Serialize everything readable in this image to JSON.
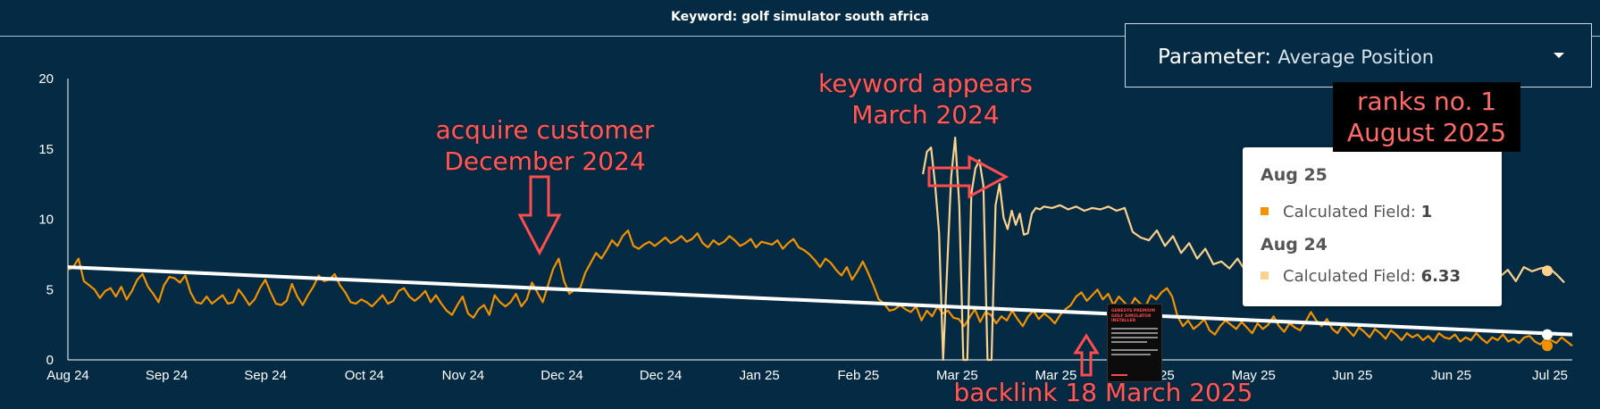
{
  "chart_data": {
    "type": "line",
    "title": "Keyword: golf simulator south africa",
    "xlabel": "",
    "ylabel": "",
    "ylim": [
      0,
      20
    ],
    "y_ticks": [
      0,
      5,
      10,
      15,
      20
    ],
    "x_tick_labels": [
      "Aug 24",
      "Sep 24",
      "Sep 24",
      "Oct 24",
      "Nov 24",
      "Dec 24",
      "Dec 24",
      "Jan 25",
      "Feb 25",
      "Mar 25",
      "Mar 25",
      "Apr 25",
      "May 25",
      "Jun 25",
      "Jun 25",
      "Jul 25"
    ],
    "x_range": [
      "2024-08-01",
      "2025-08-09"
    ],
    "grid": false,
    "series": [
      {
        "name": "Calculated Field",
        "period": "current",
        "color": "#f39200",
        "values": [
          6.4,
          6.6,
          7.2,
          5.6,
          5.3,
          5.0,
          4.4,
          4.9,
          5.1,
          4.5,
          5.2,
          4.3,
          4.9,
          5.7,
          6.1,
          5.2,
          4.7,
          4.1,
          5.3,
          5.9,
          5.8,
          5.5,
          6.0,
          4.8,
          4.1,
          4.0,
          4.5,
          4.0,
          4.3,
          4.6,
          4.0,
          4.1,
          5.0,
          4.5,
          3.9,
          4.3,
          5.1,
          5.7,
          4.8,
          4.0,
          3.9,
          4.2,
          5.4,
          4.5,
          3.9,
          4.6,
          5.2,
          6.0,
          5.6,
          5.7,
          6.1,
          5.3,
          4.8,
          4.1,
          4.0,
          4.3,
          4.1,
          3.8,
          4.2,
          4.6,
          4.0,
          4.2,
          4.9,
          5.1,
          4.5,
          4.2,
          4.5,
          4.9,
          4.1,
          4.6,
          4.0,
          3.5,
          3.2,
          3.9,
          4.5,
          3.3,
          3.0,
          3.6,
          3.9,
          3.2,
          4.6,
          4.1,
          3.8,
          4.1,
          4.7,
          3.8,
          4.3,
          5.5,
          4.8,
          4.1,
          5.3,
          6.5,
          7.2,
          5.6,
          4.7,
          5.0,
          5.1,
          6.2,
          6.9,
          7.6,
          7.2,
          7.8,
          8.5,
          8.1,
          8.8,
          9.2,
          8.1,
          7.9,
          8.2,
          8.4,
          8.1,
          8.4,
          8.7,
          8.3,
          8.5,
          8.8,
          8.4,
          8.6,
          9.0,
          8.3,
          8.0,
          8.5,
          8.2,
          8.4,
          8.8,
          8.5,
          8.1,
          8.3,
          8.6,
          8.0,
          8.4,
          8.3,
          8.2,
          8.5,
          7.9,
          8.3,
          8.6,
          8.0,
          7.8,
          7.5,
          7.1,
          6.6,
          7.2,
          6.9,
          6.4,
          6.0,
          6.6,
          5.7,
          6.3,
          7.0,
          6.2,
          5.3,
          4.3,
          4.0,
          3.5,
          3.6,
          3.9,
          3.6,
          3.4,
          3.8,
          2.8,
          3.5,
          3.1,
          3.8,
          3.3,
          3.5,
          3.0,
          2.9,
          2.4,
          3.0,
          3.6,
          2.7,
          3.4,
          3.2,
          2.6,
          3.1,
          2.8,
          3.5,
          2.9,
          2.4,
          3.1,
          3.5,
          2.9,
          3.3,
          3.0,
          2.6,
          3.2,
          3.6,
          3.9,
          4.5,
          4.8,
          4.2,
          4.6,
          5.0,
          4.3,
          4.7,
          3.9,
          4.5,
          4.1,
          3.7,
          4.4,
          4.0,
          3.8,
          4.6,
          4.3,
          4.8,
          5.1,
          4.5,
          3.1,
          2.4,
          2.8,
          2.2,
          2.5,
          2.9,
          2.1,
          1.8,
          2.4,
          2.8,
          2.5,
          2.2,
          2.7,
          2.3,
          1.9,
          2.6,
          2.2,
          2.5,
          3.1,
          2.4,
          2.0,
          2.6,
          2.3,
          2.1,
          2.7,
          3.4,
          2.8,
          2.4,
          2.9,
          2.2,
          1.9,
          2.5,
          2.1,
          1.7,
          2.3,
          2.0,
          1.6,
          2.2,
          1.9,
          1.5,
          2.1,
          1.8,
          1.4,
          1.9,
          1.6,
          1.8,
          1.4,
          1.7,
          1.3,
          1.9,
          1.6,
          1.5,
          1.8,
          1.3,
          1.6,
          1.4,
          1.9,
          1.5,
          1.2,
          1.6,
          1.4,
          1.8,
          1.3,
          1.5,
          1.2,
          1.6,
          1.7,
          1.3,
          1.1,
          1.5,
          1.4,
          1.2,
          1.6,
          1.3,
          1.0
        ]
      },
      {
        "name": "Calculated Field",
        "period": "previous",
        "color": "#fbd28d",
        "points": [
          [
            "2025-03-01",
            13.2
          ],
          [
            "2025-03-02",
            14.8
          ],
          [
            "2025-03-03",
            15.1
          ],
          [
            "2025-03-04",
            12.5
          ],
          [
            "2025-03-05",
            9.0
          ],
          [
            "2025-03-06",
            0
          ],
          [
            "2025-03-08",
            13.0
          ],
          [
            "2025-03-09",
            15.8
          ],
          [
            "2025-03-10",
            11.0
          ],
          [
            "2025-03-11",
            0
          ],
          [
            "2025-03-12",
            0
          ],
          [
            "2025-03-13",
            11.8
          ],
          [
            "2025-03-14",
            13.6
          ],
          [
            "2025-03-15",
            14.2
          ],
          [
            "2025-03-16",
            12.4
          ],
          [
            "2025-03-17",
            0
          ],
          [
            "2025-03-18",
            0
          ],
          [
            "2025-03-19",
            11.0
          ],
          [
            "2025-03-20",
            12.5
          ],
          [
            "2025-03-21",
            10.1
          ],
          [
            "2025-03-22",
            9.3
          ],
          [
            "2025-03-23",
            10.6
          ],
          [
            "2025-03-24",
            9.6
          ],
          [
            "2025-03-25",
            10.4
          ],
          [
            "2025-03-26",
            8.9
          ],
          [
            "2025-03-27",
            9.0
          ],
          [
            "2025-03-28",
            10.4
          ],
          [
            "2025-03-29",
            10.8
          ],
          [
            "2025-03-30",
            10.7
          ],
          [
            "2025-03-31",
            10.9
          ],
          [
            "2025-04-02",
            10.8
          ],
          [
            "2025-04-04",
            11.0
          ],
          [
            "2025-04-06",
            10.7
          ],
          [
            "2025-04-08",
            10.9
          ],
          [
            "2025-04-10",
            10.6
          ],
          [
            "2025-04-12",
            10.8
          ],
          [
            "2025-04-14",
            10.7
          ],
          [
            "2025-04-16",
            10.9
          ],
          [
            "2025-04-18",
            10.6
          ],
          [
            "2025-04-20",
            10.8
          ],
          [
            "2025-04-22",
            9.1
          ],
          [
            "2025-04-24",
            8.7
          ],
          [
            "2025-04-26",
            8.5
          ],
          [
            "2025-04-28",
            9.2
          ],
          [
            "2025-04-30",
            8.1
          ],
          [
            "2025-05-02",
            8.8
          ],
          [
            "2025-05-04",
            7.6
          ],
          [
            "2025-05-06",
            8.3
          ],
          [
            "2025-05-08",
            7.2
          ],
          [
            "2025-05-10",
            7.9
          ],
          [
            "2025-05-12",
            6.8
          ],
          [
            "2025-05-14",
            7.0
          ],
          [
            "2025-05-16",
            6.5
          ],
          [
            "2025-05-18",
            7.2
          ],
          [
            "2025-05-20",
            6.3
          ],
          [
            "2025-07-10",
            5.2
          ],
          [
            "2025-07-12",
            4.2
          ],
          [
            "2025-07-14",
            5.6
          ],
          [
            "2025-07-16",
            6.0
          ],
          [
            "2025-07-18",
            5.1
          ],
          [
            "2025-07-20",
            4.3
          ],
          [
            "2025-07-22",
            5.9
          ],
          [
            "2025-07-24",
            6.4
          ],
          [
            "2025-07-26",
            5.6
          ],
          [
            "2025-07-28",
            6.6
          ],
          [
            "2025-07-30",
            6.3
          ],
          [
            "2025-08-01",
            6.5
          ],
          [
            "2025-08-03",
            6.6
          ],
          [
            "2025-08-05",
            6.1
          ],
          [
            "2025-08-07",
            5.5
          ]
        ]
      },
      {
        "name": "Trend",
        "color": "#ffffff",
        "points": [
          [
            "2024-08-01",
            6.6
          ],
          [
            "2025-08-09",
            1.8
          ]
        ]
      }
    ],
    "tooltip": {
      "rows": [
        {
          "header": "Aug 25",
          "label": "Calculated Field:",
          "value": "1",
          "color": "#f39200"
        },
        {
          "header": "Aug 24",
          "label": "Calculated Field:",
          "value": "6.33",
          "color": "#fbd28d"
        }
      ]
    }
  },
  "parameter": {
    "label": "Parameter:",
    "value": "Average Position"
  },
  "annotations": {
    "acquire": [
      "acquire customer",
      "December 2024"
    ],
    "appears": [
      "keyword appears",
      "March 2024"
    ],
    "ranks": [
      "ranks no. 1",
      "August 2025"
    ],
    "backlink": "backlink 18 March 2025"
  },
  "thumbnail": {
    "title": "GENESYS PREMIUM GOLF SIMULATOR INSTALLER"
  },
  "colors": {
    "background": "#052b44",
    "accent": "#ff5a5a"
  }
}
